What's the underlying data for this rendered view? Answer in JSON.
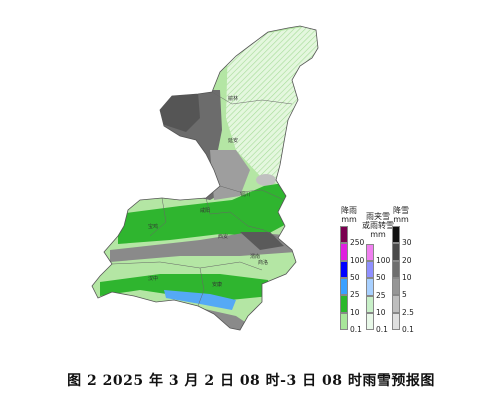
{
  "caption": "图 2   2025 年 3 月 2 日 08 时-3 日 08 时雨雪预报图",
  "cities": [
    "榆林",
    "延安",
    "铜川",
    "宝鸡",
    "咸阳",
    "西安",
    "渭南",
    "汉中",
    "安康",
    "商洛"
  ],
  "legend": {
    "rain": {
      "title_line1": "降雨",
      "title_line2": "mm",
      "ticks": [
        "250",
        "100",
        "50",
        "25",
        "10",
        "0.1"
      ],
      "colors": [
        "#7a0050",
        "#e020e0",
        "#0000ff",
        "#3aa0ff",
        "#2ab82a",
        "#a8e69a"
      ]
    },
    "sleet": {
      "title_line1": "雨夹雪",
      "title_line2": "或雨转雪",
      "title_line3": "mm",
      "ticks": [
        "100",
        "50",
        "25",
        "10",
        "0.1"
      ],
      "colors": [
        "#f080f0",
        "#9090ff",
        "#a8d0ff",
        "#c8f0c8",
        "#e8f8e8"
      ]
    },
    "snow": {
      "title_line1": "降雪",
      "title_line2": "mm",
      "ticks": [
        "30",
        "20",
        "10",
        "5",
        "2.5",
        "0.1"
      ],
      "colors": [
        "#111111",
        "#4a4a4a",
        "#6e6e6e",
        "#969696",
        "#bebebe",
        "#e0e0e0"
      ]
    }
  }
}
